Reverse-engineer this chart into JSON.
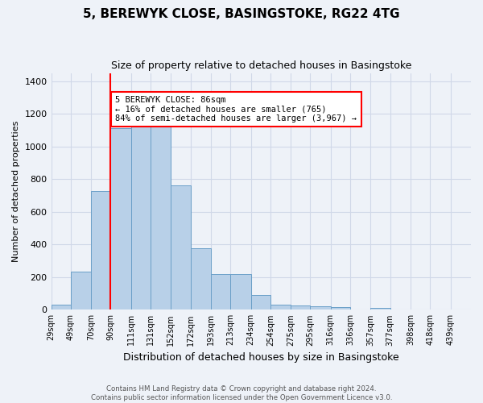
{
  "title_line1": "5, BEREWYK CLOSE, BASINGSTOKE, RG22 4TG",
  "title_line2": "Size of property relative to detached houses in Basingstoke",
  "xlabel": "Distribution of detached houses by size in Basingstoke",
  "ylabel": "Number of detached properties",
  "footer_line1": "Contains HM Land Registry data © Crown copyright and database right 2024.",
  "footer_line2": "Contains public sector information licensed under the Open Government Licence v3.0.",
  "bin_labels": [
    "29sqm",
    "49sqm",
    "70sqm",
    "90sqm",
    "111sqm",
    "131sqm",
    "152sqm",
    "172sqm",
    "193sqm",
    "213sqm",
    "234sqm",
    "254sqm",
    "275sqm",
    "295sqm",
    "316sqm",
    "336sqm",
    "357sqm",
    "377sqm",
    "398sqm",
    "418sqm",
    "439sqm"
  ],
  "bar_values": [
    30,
    235,
    725,
    1110,
    1120,
    1120,
    760,
    375,
    220,
    220,
    90,
    30,
    25,
    22,
    18,
    0,
    10,
    0,
    0,
    0,
    0
  ],
  "bar_color": "#b8d0e8",
  "bar_edge_color": "#6a9fc8",
  "vline_color": "red",
  "annotation_text": "5 BEREWYK CLOSE: 86sqm\n← 16% of detached houses are smaller (765)\n84% of semi-detached houses are larger (3,967) →",
  "annotation_box_color": "white",
  "annotation_border_color": "red",
  "ylim": [
    0,
    1450
  ],
  "yticks": [
    0,
    200,
    400,
    600,
    800,
    1000,
    1200,
    1400
  ],
  "grid_color": "#d0d8e8",
  "bg_color": "#eef2f8",
  "bin_edges": [
    29,
    49,
    70,
    90,
    111,
    131,
    152,
    172,
    193,
    213,
    234,
    254,
    275,
    295,
    316,
    336,
    357,
    377,
    398,
    418,
    439,
    460
  ]
}
